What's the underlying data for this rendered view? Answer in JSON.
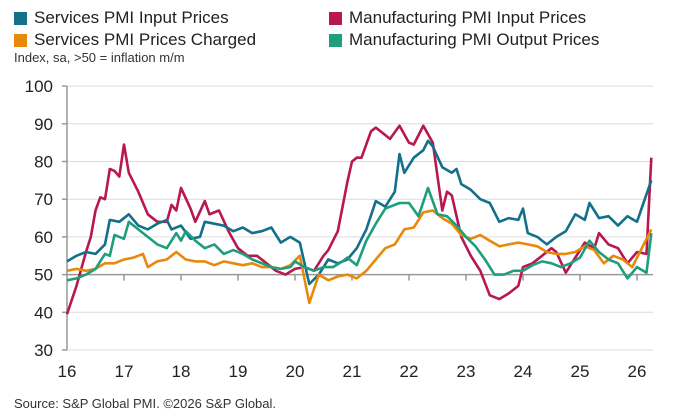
{
  "chart_data": {
    "type": "line",
    "subtitle": "Index, sa, >50 = inflation m/m",
    "source": "Source: S&P Global PMI. ©2026 S&P Global.",
    "ylim": [
      30,
      100
    ],
    "yticks": [
      "30",
      "40",
      "50",
      "60",
      "70",
      "80",
      "90",
      "100"
    ],
    "xticks": [
      "16",
      "17",
      "18",
      "19",
      "20",
      "21",
      "22",
      "23",
      "24",
      "25",
      "26"
    ],
    "grid": true,
    "legend": "top",
    "series": [
      {
        "name": "Services PMI Input Prices",
        "color": "#13708a",
        "points": [
          [
            "2016-01",
            53.5
          ],
          [
            "2016-03",
            55
          ],
          [
            "2016-05",
            56
          ],
          [
            "2016-07",
            55.5
          ],
          [
            "2016-09",
            58
          ],
          [
            "2016-10",
            64.5
          ],
          [
            "2016-12",
            64
          ],
          [
            "2017-02",
            66
          ],
          [
            "2017-04",
            63
          ],
          [
            "2017-06",
            62
          ],
          [
            "2017-08",
            63.5
          ],
          [
            "2017-10",
            64.5
          ],
          [
            "2017-11",
            62
          ],
          [
            "2018-01",
            63
          ],
          [
            "2018-03",
            59.5
          ],
          [
            "2018-05",
            60
          ],
          [
            "2018-06",
            64
          ],
          [
            "2018-08",
            63.5
          ],
          [
            "2018-10",
            63
          ],
          [
            "2018-12",
            61.5
          ],
          [
            "2019-02",
            62.5
          ],
          [
            "2019-04",
            61
          ],
          [
            "2019-06",
            61.5
          ],
          [
            "2019-08",
            62.5
          ],
          [
            "2019-10",
            58.5
          ],
          [
            "2019-12",
            60
          ],
          [
            "2020-02",
            58.5
          ],
          [
            "2020-04",
            47.5
          ],
          [
            "2020-06",
            50
          ],
          [
            "2020-08",
            54
          ],
          [
            "2020-10",
            53
          ],
          [
            "2020-12",
            54
          ],
          [
            "2021-02",
            57
          ],
          [
            "2021-04",
            62
          ],
          [
            "2021-06",
            69.5
          ],
          [
            "2021-08",
            68
          ],
          [
            "2021-10",
            72
          ],
          [
            "2021-11",
            82
          ],
          [
            "2021-12",
            77
          ],
          [
            "2022-02",
            81
          ],
          [
            "2022-04",
            83
          ],
          [
            "2022-05",
            85.5
          ],
          [
            "2022-06",
            84
          ],
          [
            "2022-08",
            78.5
          ],
          [
            "2022-10",
            77
          ],
          [
            "2022-11",
            78
          ],
          [
            "2022-12",
            74
          ],
          [
            "2023-02",
            72.5
          ],
          [
            "2023-04",
            70
          ],
          [
            "2023-06",
            69
          ],
          [
            "2023-08",
            64
          ],
          [
            "2023-10",
            65
          ],
          [
            "2023-12",
            64.5
          ],
          [
            "2024-01",
            67.5
          ],
          [
            "2024-02",
            61
          ],
          [
            "2024-04",
            60
          ],
          [
            "2024-06",
            58
          ],
          [
            "2024-08",
            60
          ],
          [
            "2024-10",
            61.5
          ],
          [
            "2024-12",
            66
          ],
          [
            "2025-02",
            64.5
          ],
          [
            "2025-03",
            69
          ],
          [
            "2025-05",
            65
          ],
          [
            "2025-07",
            65.5
          ],
          [
            "2025-09",
            63
          ],
          [
            "2025-11",
            65.5
          ],
          [
            "2026-01",
            64
          ],
          [
            "2026-04",
            75
          ]
        ]
      },
      {
        "name": "Services PMI Prices Charged",
        "color": "#e8890c",
        "points": [
          [
            "2016-01",
            51
          ],
          [
            "2016-03",
            51.5
          ],
          [
            "2016-05",
            51
          ],
          [
            "2016-07",
            51.5
          ],
          [
            "2016-09",
            53
          ],
          [
            "2016-11",
            53
          ],
          [
            "2017-01",
            54
          ],
          [
            "2017-03",
            54.5
          ],
          [
            "2017-05",
            55.5
          ],
          [
            "2017-06",
            52
          ],
          [
            "2017-08",
            53.5
          ],
          [
            "2017-10",
            54
          ],
          [
            "2017-12",
            56
          ],
          [
            "2018-02",
            54
          ],
          [
            "2018-04",
            53.5
          ],
          [
            "2018-06",
            53.5
          ],
          [
            "2018-08",
            52.5
          ],
          [
            "2018-10",
            53.5
          ],
          [
            "2018-12",
            53
          ],
          [
            "2019-02",
            52.5
          ],
          [
            "2019-04",
            53
          ],
          [
            "2019-06",
            52
          ],
          [
            "2019-08",
            52
          ],
          [
            "2019-10",
            51.5
          ],
          [
            "2019-12",
            52.5
          ],
          [
            "2020-02",
            55
          ],
          [
            "2020-04",
            42.5
          ],
          [
            "2020-06",
            50
          ],
          [
            "2020-08",
            48.5
          ],
          [
            "2020-10",
            49.5
          ],
          [
            "2020-12",
            50
          ],
          [
            "2021-02",
            49
          ],
          [
            "2021-04",
            51
          ],
          [
            "2021-06",
            54
          ],
          [
            "2021-08",
            57
          ],
          [
            "2021-10",
            58
          ],
          [
            "2021-12",
            62
          ],
          [
            "2022-02",
            62.5
          ],
          [
            "2022-04",
            66.5
          ],
          [
            "2022-06",
            67
          ],
          [
            "2022-08",
            65
          ],
          [
            "2022-10",
            63.5
          ],
          [
            "2022-12",
            60.5
          ],
          [
            "2023-02",
            59.5
          ],
          [
            "2023-04",
            60.5
          ],
          [
            "2023-06",
            59
          ],
          [
            "2023-08",
            57.5
          ],
          [
            "2023-10",
            58
          ],
          [
            "2023-12",
            58.5
          ],
          [
            "2024-02",
            58
          ],
          [
            "2024-04",
            57.5
          ],
          [
            "2024-06",
            56
          ],
          [
            "2024-08",
            55.5
          ],
          [
            "2024-10",
            55.5
          ],
          [
            "2024-12",
            56
          ],
          [
            "2025-02",
            57.5
          ],
          [
            "2025-04",
            56.5
          ],
          [
            "2025-06",
            53
          ],
          [
            "2025-08",
            55
          ],
          [
            "2025-10",
            54
          ],
          [
            "2025-12",
            52
          ],
          [
            "2026-02",
            57
          ],
          [
            "2026-04",
            62
          ]
        ]
      },
      {
        "name": "Manufacturing PMI Input Prices",
        "color": "#b8174f",
        "points": [
          [
            "2016-01",
            39.5
          ],
          [
            "2016-03",
            47
          ],
          [
            "2016-05",
            56
          ],
          [
            "2016-06",
            60
          ],
          [
            "2016-07",
            67
          ],
          [
            "2016-08",
            70.5
          ],
          [
            "2016-09",
            70
          ],
          [
            "2016-10",
            78
          ],
          [
            "2016-11",
            77.5
          ],
          [
            "2016-12",
            76
          ],
          [
            "2017-01",
            84.5
          ],
          [
            "2017-02",
            77
          ],
          [
            "2017-04",
            72
          ],
          [
            "2017-06",
            66
          ],
          [
            "2017-08",
            64
          ],
          [
            "2017-10",
            64
          ],
          [
            "2017-11",
            68.5
          ],
          [
            "2017-12",
            67
          ],
          [
            "2018-01",
            73
          ],
          [
            "2018-03",
            67.5
          ],
          [
            "2018-04",
            64
          ],
          [
            "2018-06",
            69.5
          ],
          [
            "2018-07",
            66
          ],
          [
            "2018-09",
            67
          ],
          [
            "2018-11",
            61.5
          ],
          [
            "2019-01",
            57
          ],
          [
            "2019-03",
            55
          ],
          [
            "2019-05",
            55
          ],
          [
            "2019-07",
            53
          ],
          [
            "2019-09",
            51
          ],
          [
            "2019-11",
            50
          ],
          [
            "2020-01",
            51.5
          ],
          [
            "2020-03",
            52
          ],
          [
            "2020-05",
            51
          ],
          [
            "2020-07",
            55
          ],
          [
            "2020-08",
            56.5
          ],
          [
            "2020-10",
            61.5
          ],
          [
            "2020-12",
            74.5
          ],
          [
            "2021-01",
            80
          ],
          [
            "2021-02",
            81
          ],
          [
            "2021-03",
            81
          ],
          [
            "2021-05",
            88
          ],
          [
            "2021-06",
            89
          ],
          [
            "2021-08",
            87
          ],
          [
            "2021-09",
            86
          ],
          [
            "2021-11",
            89.5
          ],
          [
            "2022-01",
            85
          ],
          [
            "2022-02",
            84.5
          ],
          [
            "2022-04",
            89.5
          ],
          [
            "2022-06",
            85
          ],
          [
            "2022-08",
            67
          ],
          [
            "2022-09",
            72
          ],
          [
            "2022-10",
            71
          ],
          [
            "2022-12",
            60
          ],
          [
            "2023-02",
            55
          ],
          [
            "2023-04",
            51
          ],
          [
            "2023-06",
            44.5
          ],
          [
            "2023-08",
            43.5
          ],
          [
            "2023-10",
            45
          ],
          [
            "2023-12",
            47
          ],
          [
            "2024-01",
            52
          ],
          [
            "2024-03",
            53
          ],
          [
            "2024-05",
            55
          ],
          [
            "2024-07",
            57
          ],
          [
            "2024-08",
            56
          ],
          [
            "2024-10",
            50.5
          ],
          [
            "2024-12",
            54.5
          ],
          [
            "2025-02",
            58.5
          ],
          [
            "2025-04",
            57
          ],
          [
            "2025-05",
            61
          ],
          [
            "2025-07",
            58
          ],
          [
            "2025-09",
            57
          ],
          [
            "2025-11",
            53
          ],
          [
            "2026-01",
            56
          ],
          [
            "2026-03",
            55.5
          ],
          [
            "2026-04",
            81
          ]
        ]
      },
      {
        "name": "Manufacturing PMI Output Prices",
        "color": "#1e9e7d",
        "points": [
          [
            "2016-01",
            48.5
          ],
          [
            "2016-03",
            49
          ],
          [
            "2016-05",
            50
          ],
          [
            "2016-07",
            51.5
          ],
          [
            "2016-09",
            55.5
          ],
          [
            "2016-10",
            55
          ],
          [
            "2016-11",
            60.5
          ],
          [
            "2016-12",
            60
          ],
          [
            "2017-01",
            59.5
          ],
          [
            "2017-02",
            64
          ],
          [
            "2017-04",
            62
          ],
          [
            "2017-06",
            60
          ],
          [
            "2017-08",
            58
          ],
          [
            "2017-10",
            57
          ],
          [
            "2017-12",
            61
          ],
          [
            "2018-01",
            59
          ],
          [
            "2018-02",
            61.5
          ],
          [
            "2018-04",
            59
          ],
          [
            "2018-06",
            57
          ],
          [
            "2018-08",
            58
          ],
          [
            "2018-10",
            55.5
          ],
          [
            "2018-12",
            56.5
          ],
          [
            "2019-02",
            55.5
          ],
          [
            "2019-04",
            54
          ],
          [
            "2019-06",
            53
          ],
          [
            "2019-08",
            52
          ],
          [
            "2019-10",
            51.5
          ],
          [
            "2019-12",
            52
          ],
          [
            "2020-01",
            53.5
          ],
          [
            "2020-03",
            52
          ],
          [
            "2020-05",
            51
          ],
          [
            "2020-07",
            52
          ],
          [
            "2020-09",
            52
          ],
          [
            "2020-11",
            53.5
          ],
          [
            "2020-12",
            54.5
          ],
          [
            "2021-02",
            52.5
          ],
          [
            "2021-04",
            59
          ],
          [
            "2021-06",
            63.5
          ],
          [
            "2021-08",
            67.5
          ],
          [
            "2021-09",
            68
          ],
          [
            "2021-11",
            69
          ],
          [
            "2022-01",
            69
          ],
          [
            "2022-03",
            65.5
          ],
          [
            "2022-05",
            73
          ],
          [
            "2022-07",
            66
          ],
          [
            "2022-09",
            65.5
          ],
          [
            "2022-11",
            63
          ],
          [
            "2023-01",
            60
          ],
          [
            "2023-03",
            57.5
          ],
          [
            "2023-05",
            54
          ],
          [
            "2023-07",
            50
          ],
          [
            "2023-09",
            50
          ],
          [
            "2023-11",
            51
          ],
          [
            "2024-01",
            51
          ],
          [
            "2024-03",
            52.5
          ],
          [
            "2024-05",
            53.5
          ],
          [
            "2024-07",
            53
          ],
          [
            "2024-09",
            52
          ],
          [
            "2024-11",
            53
          ],
          [
            "2025-01",
            54.5
          ],
          [
            "2025-03",
            59
          ],
          [
            "2025-05",
            56
          ],
          [
            "2025-07",
            54
          ],
          [
            "2025-09",
            53
          ],
          [
            "2025-11",
            49
          ],
          [
            "2026-01",
            52
          ],
          [
            "2026-03",
            50.5
          ],
          [
            "2026-04",
            61
          ]
        ]
      }
    ]
  }
}
